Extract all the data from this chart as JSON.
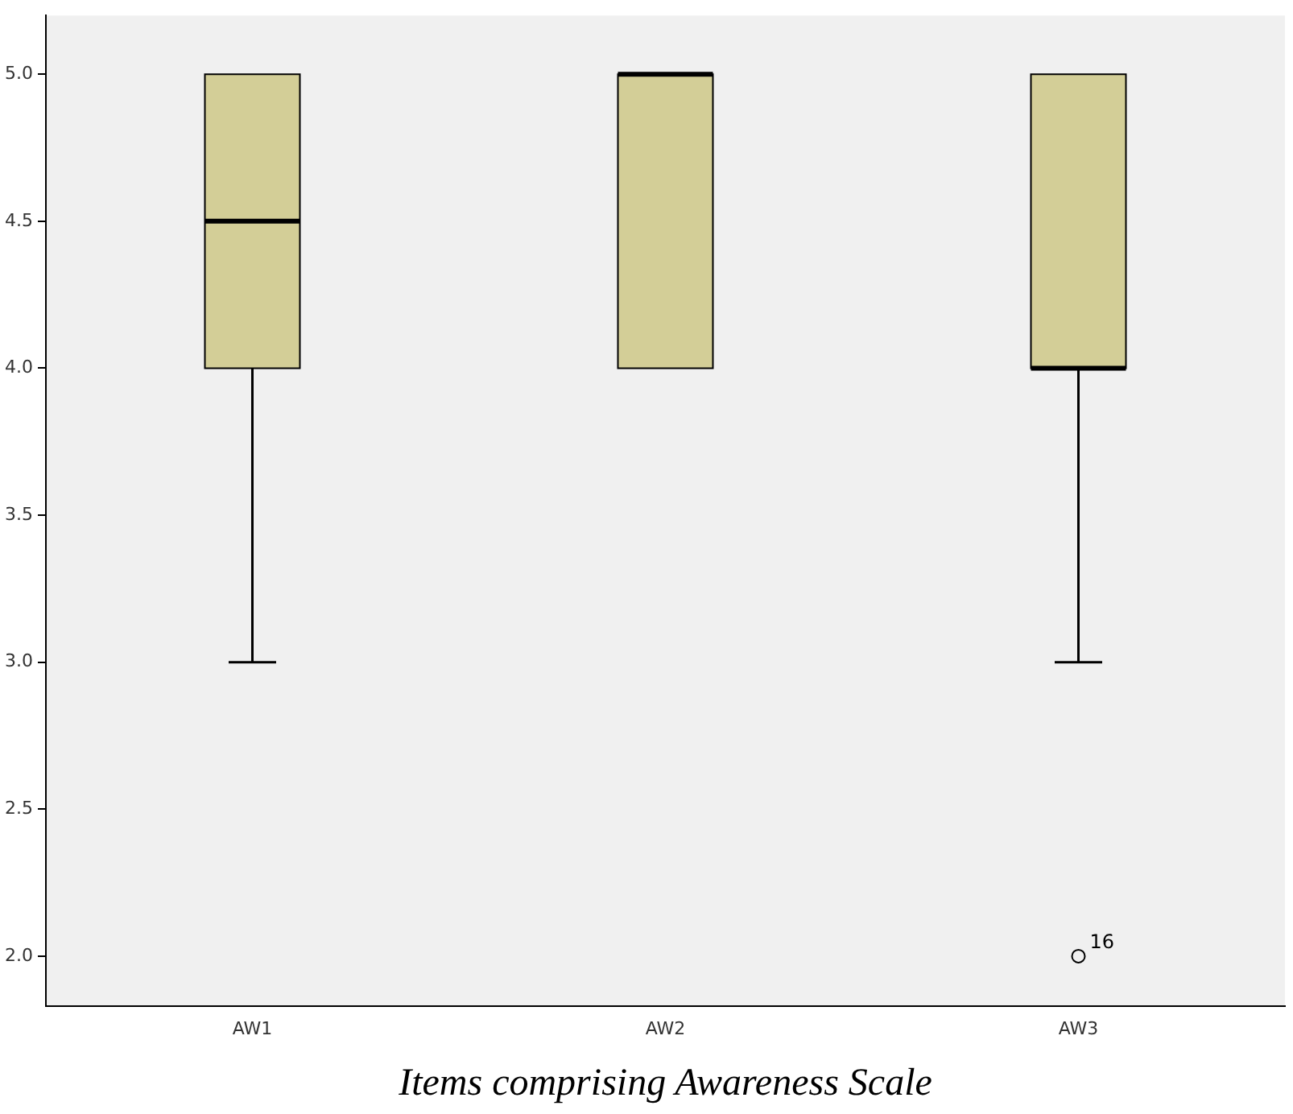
{
  "chart_data": {
    "type": "box",
    "xlabel": "Items comprising Awareness Scale",
    "categories": [
      "AW1",
      "AW2",
      "AW3"
    ],
    "color": "#d3ce97",
    "boxes": [
      {
        "low": 3,
        "q1": 4,
        "median": 4.5,
        "q3": 5,
        "high": 5
      },
      {
        "low": 4,
        "q1": 4,
        "median": 5,
        "q3": 5,
        "high": 5
      },
      {
        "low": 3,
        "q1": 4,
        "median": 4,
        "q3": 5,
        "high": 5,
        "outliers": [
          2
        ]
      }
    ],
    "ylim": [
      1.83,
      5.2
    ],
    "yticks": [
      {
        "value": 2,
        "label": "2.0"
      },
      {
        "value": 2.5,
        "label": "2.5"
      },
      {
        "value": 3,
        "label": "3.0"
      },
      {
        "value": 3.5,
        "label": "3.5"
      },
      {
        "value": 4,
        "label": "4.0"
      },
      {
        "value": 4.5,
        "label": "4.5"
      },
      {
        "value": 5,
        "label": "5.0"
      }
    ],
    "grid": false,
    "marker": "circle",
    "annotations": [
      "16"
    ]
  }
}
